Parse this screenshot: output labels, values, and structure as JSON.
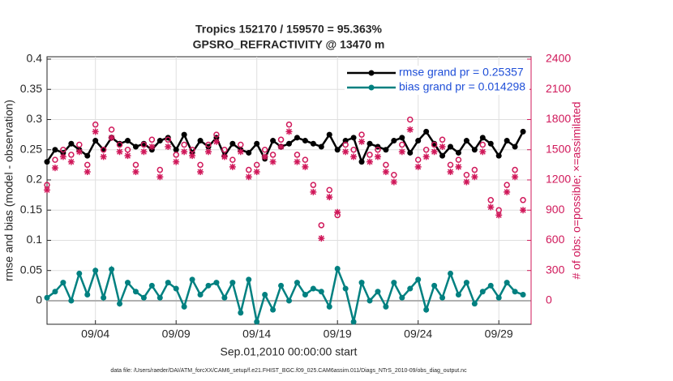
{
  "chart_data": {
    "type": "line",
    "title": "Tropics 152170 / 159570 = 95.363%",
    "subtitle": "GPSRO_REFRACTIVITY @ 13470 m",
    "ylabel": "rmse and bias (model - observation)",
    "y2label": "# of obs: o=possible; ×=assimilated",
    "xlabel": "Sep.01,2010 00:00:00 start",
    "footnote": "data file: /Users/raeder/DAI/ATM_forcXX/CAM6_setup/f.e21.FHIST_BGC.f09_025.CAM6assim.011/Diags_NTrS_2010-09/obs_diag_output.nc",
    "xlim": [
      0,
      30
    ],
    "xticks": [
      {
        "value": 3,
        "label": "09/04"
      },
      {
        "value": 8,
        "label": "09/09"
      },
      {
        "value": 13,
        "label": "09/14"
      },
      {
        "value": 18,
        "label": "09/19"
      },
      {
        "value": 23,
        "label": "09/24"
      },
      {
        "value": 28,
        "label": "09/29"
      }
    ],
    "ylim": [
      -0.039,
      0.404
    ],
    "yticks": [
      0,
      0.05,
      0.1,
      0.15,
      0.2,
      0.25,
      0.3,
      0.35,
      0.4
    ],
    "y2lim": [
      -234,
      2424
    ],
    "y2ticks": [
      0,
      300,
      600,
      900,
      1200,
      1500,
      1800,
      2100,
      2400
    ],
    "grid": true,
    "legend": "upper right",
    "x": [
      0,
      0.5,
      1,
      1.5,
      2,
      2.5,
      3,
      3.5,
      4,
      4.5,
      5,
      5.5,
      6,
      6.5,
      7,
      7.5,
      8,
      8.5,
      9,
      9.5,
      10,
      10.5,
      11,
      11.5,
      12,
      12.5,
      13,
      13.5,
      14,
      14.5,
      15,
      15.5,
      16,
      16.5,
      17,
      17.5,
      18,
      18.5,
      19,
      19.5,
      20,
      20.5,
      21,
      21.5,
      22,
      22.5,
      23,
      23.5,
      24,
      24.5,
      25,
      25.5,
      26,
      26.5,
      27,
      27.5,
      28,
      28.5,
      29,
      29.5
    ],
    "series": [
      {
        "name": "rmse grand pr = 0.25357",
        "color": "#000000",
        "marker": "dot",
        "values": [
          0.23,
          0.25,
          0.245,
          0.26,
          0.25,
          0.24,
          0.265,
          0.25,
          0.27,
          0.26,
          0.265,
          0.255,
          0.26,
          0.25,
          0.265,
          0.27,
          0.25,
          0.275,
          0.245,
          0.265,
          0.255,
          0.27,
          0.24,
          0.26,
          0.25,
          0.245,
          0.26,
          0.235,
          0.265,
          0.255,
          0.26,
          0.27,
          0.265,
          0.26,
          0.255,
          0.275,
          0.25,
          0.265,
          0.27,
          0.23,
          0.26,
          0.255,
          0.25,
          0.265,
          0.27,
          0.245,
          0.265,
          0.28,
          0.26,
          0.24,
          0.255,
          0.245,
          0.265,
          0.25,
          0.27,
          0.26,
          0.24,
          0.265,
          0.255,
          0.28
        ]
      },
      {
        "name": "bias grand pr = 0.014298",
        "color": "#008080",
        "marker": "dot",
        "values": [
          0.005,
          0.015,
          0.03,
          0.0,
          0.045,
          0.01,
          0.05,
          0.005,
          0.052,
          -0.005,
          0.03,
          0.015,
          0.005,
          0.025,
          0.005,
          0.03,
          0.02,
          -0.01,
          0.035,
          0.01,
          0.025,
          0.03,
          0.005,
          0.03,
          -0.02,
          0.035,
          -0.035,
          0.01,
          -0.015,
          0.025,
          0.0,
          0.03,
          0.01,
          0.02,
          0.015,
          -0.01,
          0.053,
          0.02,
          -0.035,
          0.03,
          0.0,
          0.015,
          -0.01,
          0.03,
          0.005,
          0.02,
          0.035,
          -0.015,
          0.025,
          0.005,
          0.045,
          0.01,
          0.03,
          -0.005,
          0.015,
          0.025,
          0.005,
          0.03,
          0.015,
          0.01
        ]
      },
      {
        "axis": "y2",
        "color": "#d0185a",
        "marker": "circle",
        "values": [
          1150,
          1400,
          1500,
          1450,
          1550,
          1350,
          1750,
          1500,
          1700,
          1550,
          1500,
          1350,
          1550,
          1600,
          1300,
          1600,
          1450,
          1550,
          1500,
          1350,
          1550,
          1650,
          1500,
          1400,
          1550,
          1300,
          1350,
          1500,
          1450,
          1600,
          1750,
          1450,
          1400,
          1150,
          750,
          1100,
          850,
          1550,
          1500,
          1650,
          1450,
          1500,
          1350,
          1250,
          1550,
          1800,
          1400,
          1500,
          1550,
          1600,
          1350,
          1400,
          1250,
          1300,
          1550,
          1000,
          900,
          1150,
          1300,
          1000
        ]
      },
      {
        "axis": "y2",
        "color": "#d0185a",
        "marker": "star",
        "values": [
          1100,
          1320,
          1430,
          1380,
          1480,
          1280,
          1680,
          1430,
          1620,
          1480,
          1440,
          1280,
          1480,
          1530,
          1230,
          1530,
          1380,
          1480,
          1440,
          1280,
          1480,
          1580,
          1430,
          1330,
          1480,
          1230,
          1280,
          1430,
          1380,
          1530,
          1680,
          1380,
          1330,
          1080,
          620,
          1030,
          880,
          1480,
          1430,
          1580,
          1380,
          1430,
          1280,
          1180,
          1480,
          1700,
          1330,
          1430,
          1480,
          1530,
          1280,
          1330,
          1180,
          1230,
          1480,
          930,
          850,
          1080,
          1230,
          900
        ]
      }
    ]
  }
}
